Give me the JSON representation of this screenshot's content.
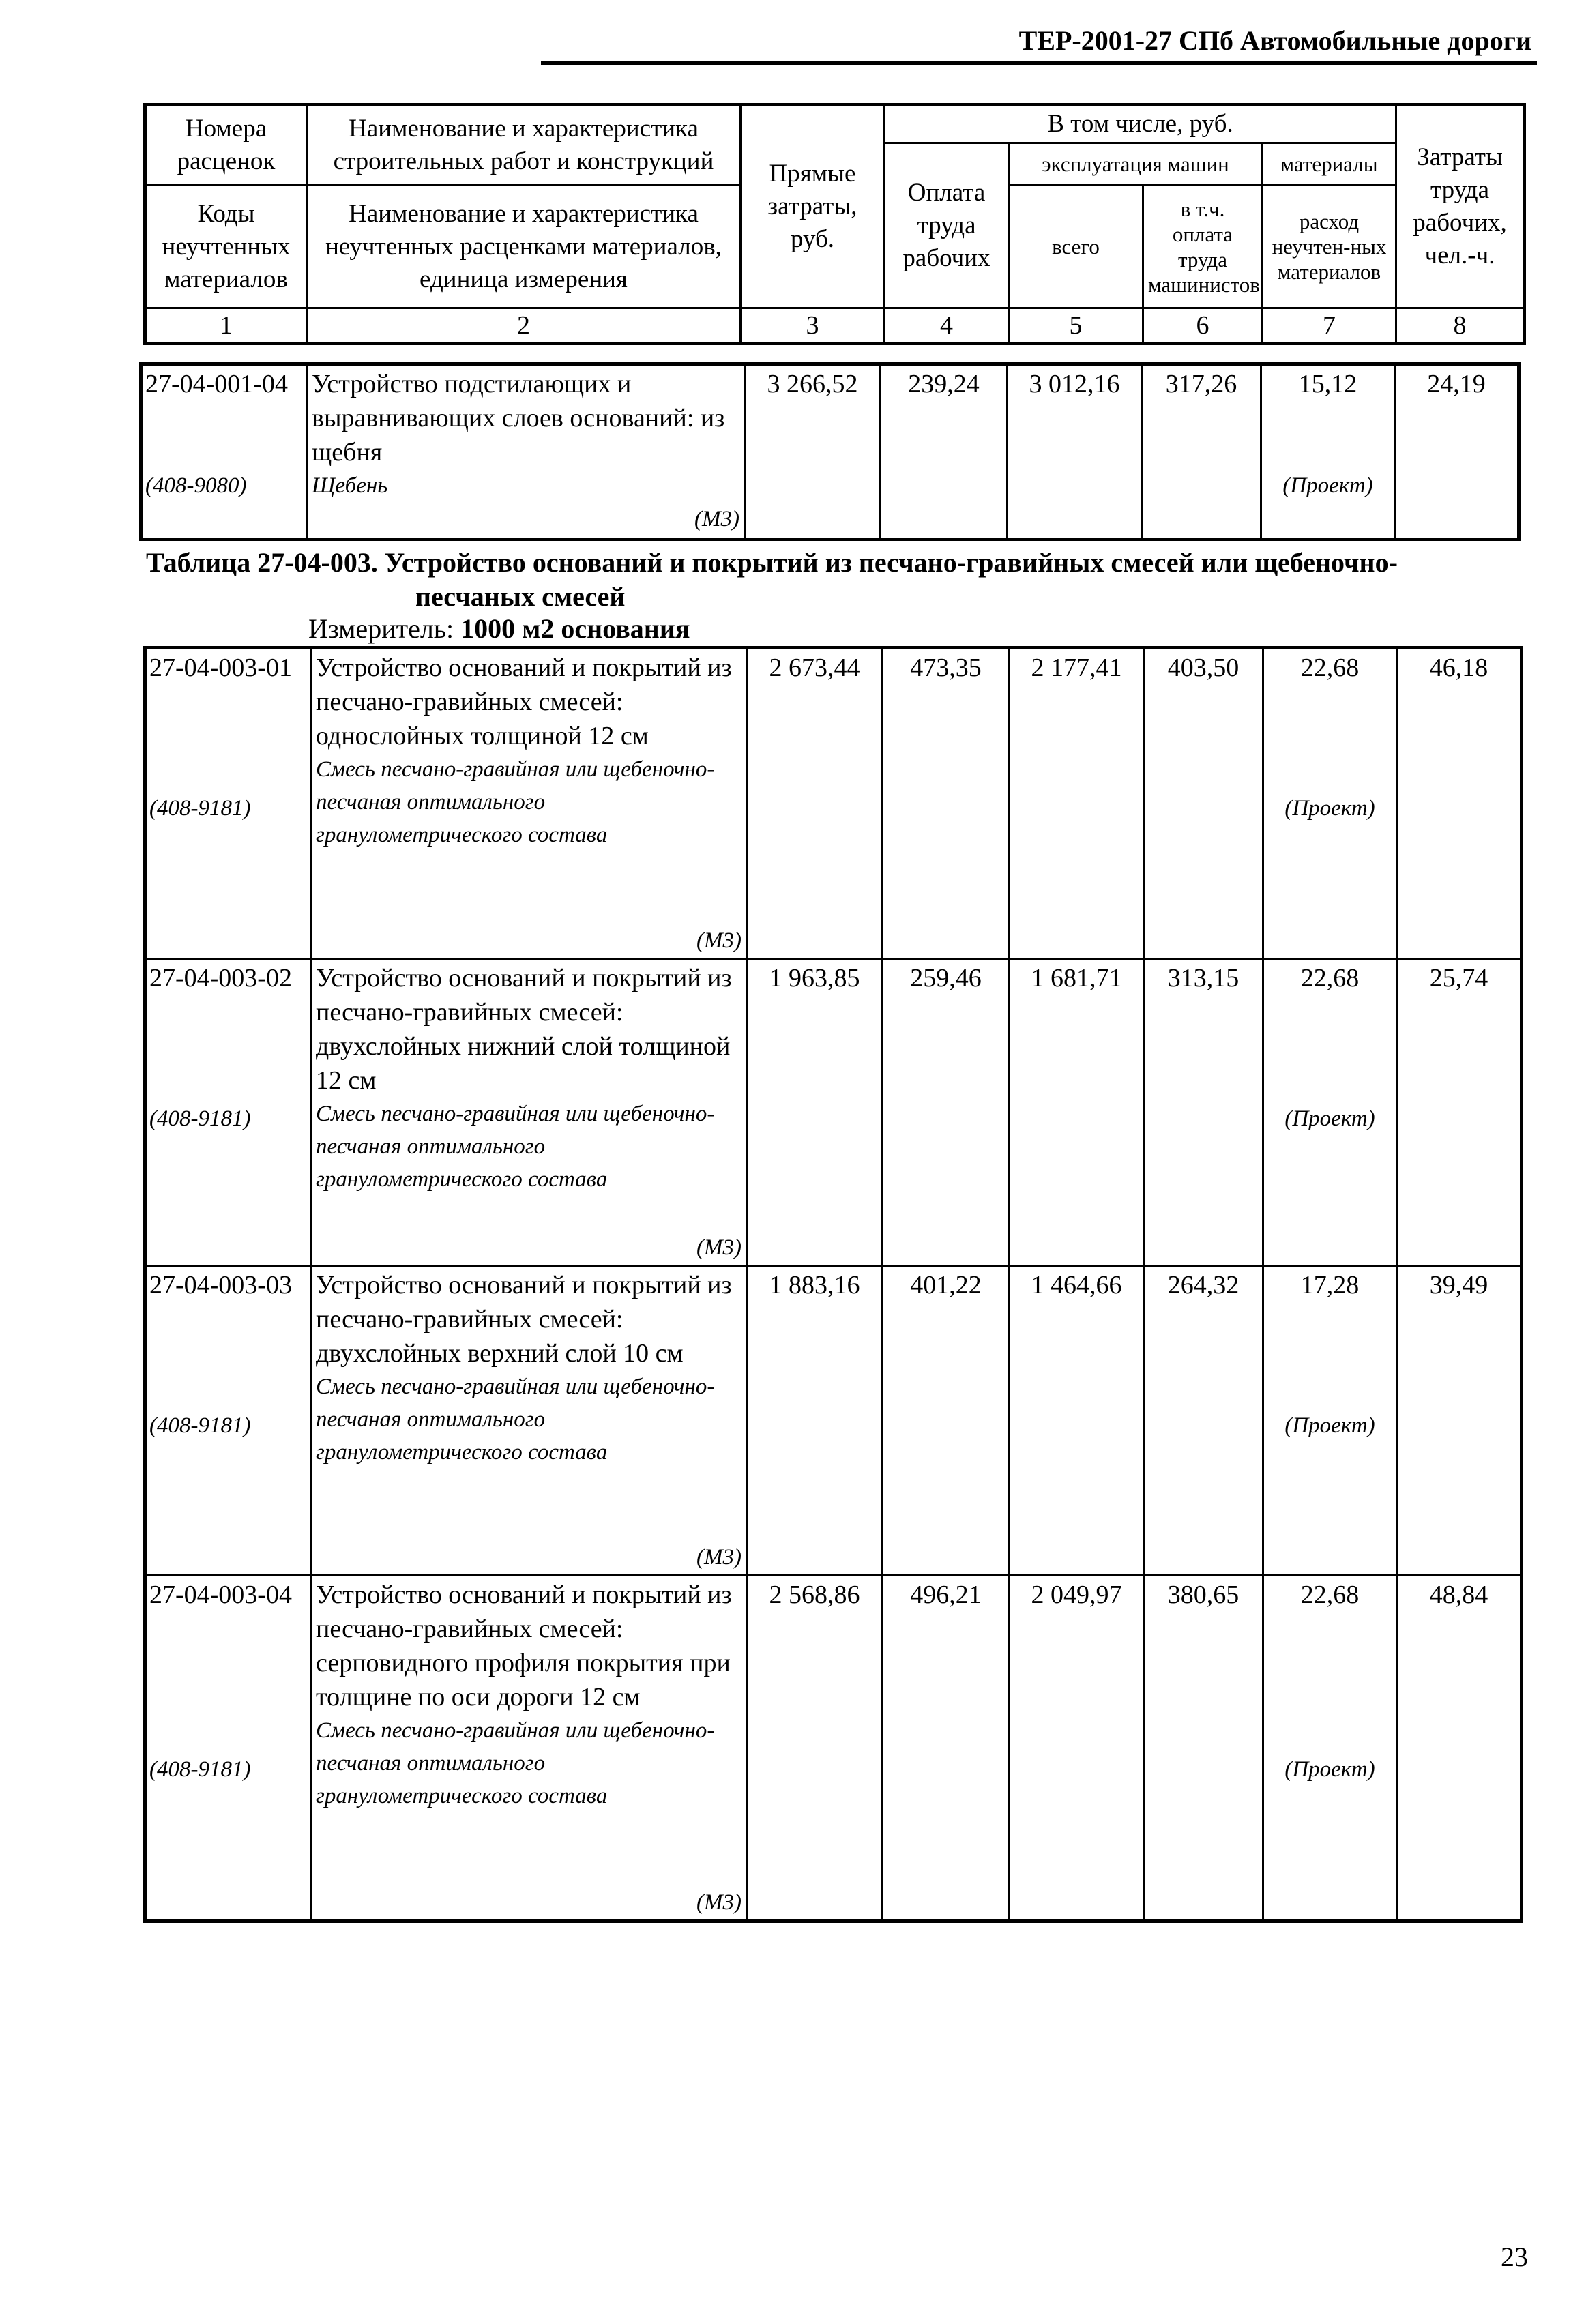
{
  "running_header": "ТЕР-2001-27 СПб Автомобильные дороги",
  "page_number": "23",
  "header": {
    "col1_top": "Номера расценок",
    "col1_bottom": "Коды неучтенных материалов",
    "col2_top": "Наименование и характеристика строительных работ и конструкций",
    "col2_bottom": "Наименование и характеристика неучтенных расценками материалов, единица измерения",
    "col3": "Прямые затраты, руб.",
    "group": "В том числе, руб.",
    "col4": "Оплата труда рабочих",
    "machines": "эксплуатация машин",
    "col5": "всего",
    "col6": "в т.ч. оплата труда машинистов",
    "materials": "материалы",
    "col7": "расход неучтен-ных материалов",
    "col8": "Затраты труда рабочих, чел.-ч.",
    "numbers": [
      "1",
      "2",
      "3",
      "4",
      "5",
      "6",
      "7",
      "8"
    ]
  },
  "prev_rows": [
    {
      "code": "27-04-001-04",
      "name": "Устройство подстилающих и выравнивающих слоев оснований: из щебня",
      "material_code": "(408-9080)",
      "material": "Щебень",
      "unit": "(М3)",
      "direct": "3 266,52",
      "labor": "239,24",
      "machines": "3 012,16",
      "operators": "317,26",
      "material_qty": "15,12",
      "material_note": "(Проект)",
      "hours": "24,19"
    }
  ],
  "table": {
    "title_line1": "Таблица 27-04-003. Устройство оснований и покрытий из песчано-гравийных смесей или щебеночно-",
    "title_line2": "песчаных смесей",
    "measure_label": "Измеритель:",
    "measure_value": "1000 м2 основания"
  },
  "rows": [
    {
      "code": "27-04-003-01",
      "name": "Устройство оснований и покрытий из песчано-гравийных смесей: однослойных толщиной 12 см",
      "material_code": "(408-9181)",
      "material": "Смесь песчано-гравийная или щебеночно-песчаная оптимального гранулометрического состава",
      "unit": "(М3)",
      "direct": "2 673,44",
      "labor": "473,35",
      "machines": "2 177,41",
      "operators": "403,50",
      "material_qty": "22,68",
      "material_note": "(Проект)",
      "hours": "46,18"
    },
    {
      "code": "27-04-003-02",
      "name": "Устройство оснований и покрытий из песчано-гравийных смесей: двухслойных нижний слой толщиной 12 см",
      "material_code": "(408-9181)",
      "material": "Смесь песчано-гравийная или щебеночно-песчаная оптимального гранулометрического состава",
      "unit": "(М3)",
      "direct": "1 963,85",
      "labor": "259,46",
      "machines": "1 681,71",
      "operators": "313,15",
      "material_qty": "22,68",
      "material_note": "(Проект)",
      "hours": "25,74"
    },
    {
      "code": "27-04-003-03",
      "name": "Устройство оснований и покрытий из песчано-гравийных смесей: двухслойных верхний слой 10 см",
      "material_code": "(408-9181)",
      "material": "Смесь песчано-гравийная или щебеночно-песчаная оптимального гранулометрического состава",
      "unit": "(М3)",
      "direct": "1 883,16",
      "labor": "401,22",
      "machines": "1 464,66",
      "operators": "264,32",
      "material_qty": "17,28",
      "material_note": "(Проект)",
      "hours": "39,49"
    },
    {
      "code": "27-04-003-04",
      "name": "Устройство оснований и покрытий из песчано-гравийных смесей: серповидного профиля покрытия при толщине по оси дороги 12 см",
      "material_code": "(408-9181)",
      "material": "Смесь песчано-гравийная или щебеночно-песчаная оптимального гранулометрического состава",
      "unit": "(М3)",
      "direct": "2 568,86",
      "labor": "496,21",
      "machines": "2 049,97",
      "operators": "380,65",
      "material_qty": "22,68",
      "material_note": "(Проект)",
      "hours": "48,84"
    }
  ]
}
